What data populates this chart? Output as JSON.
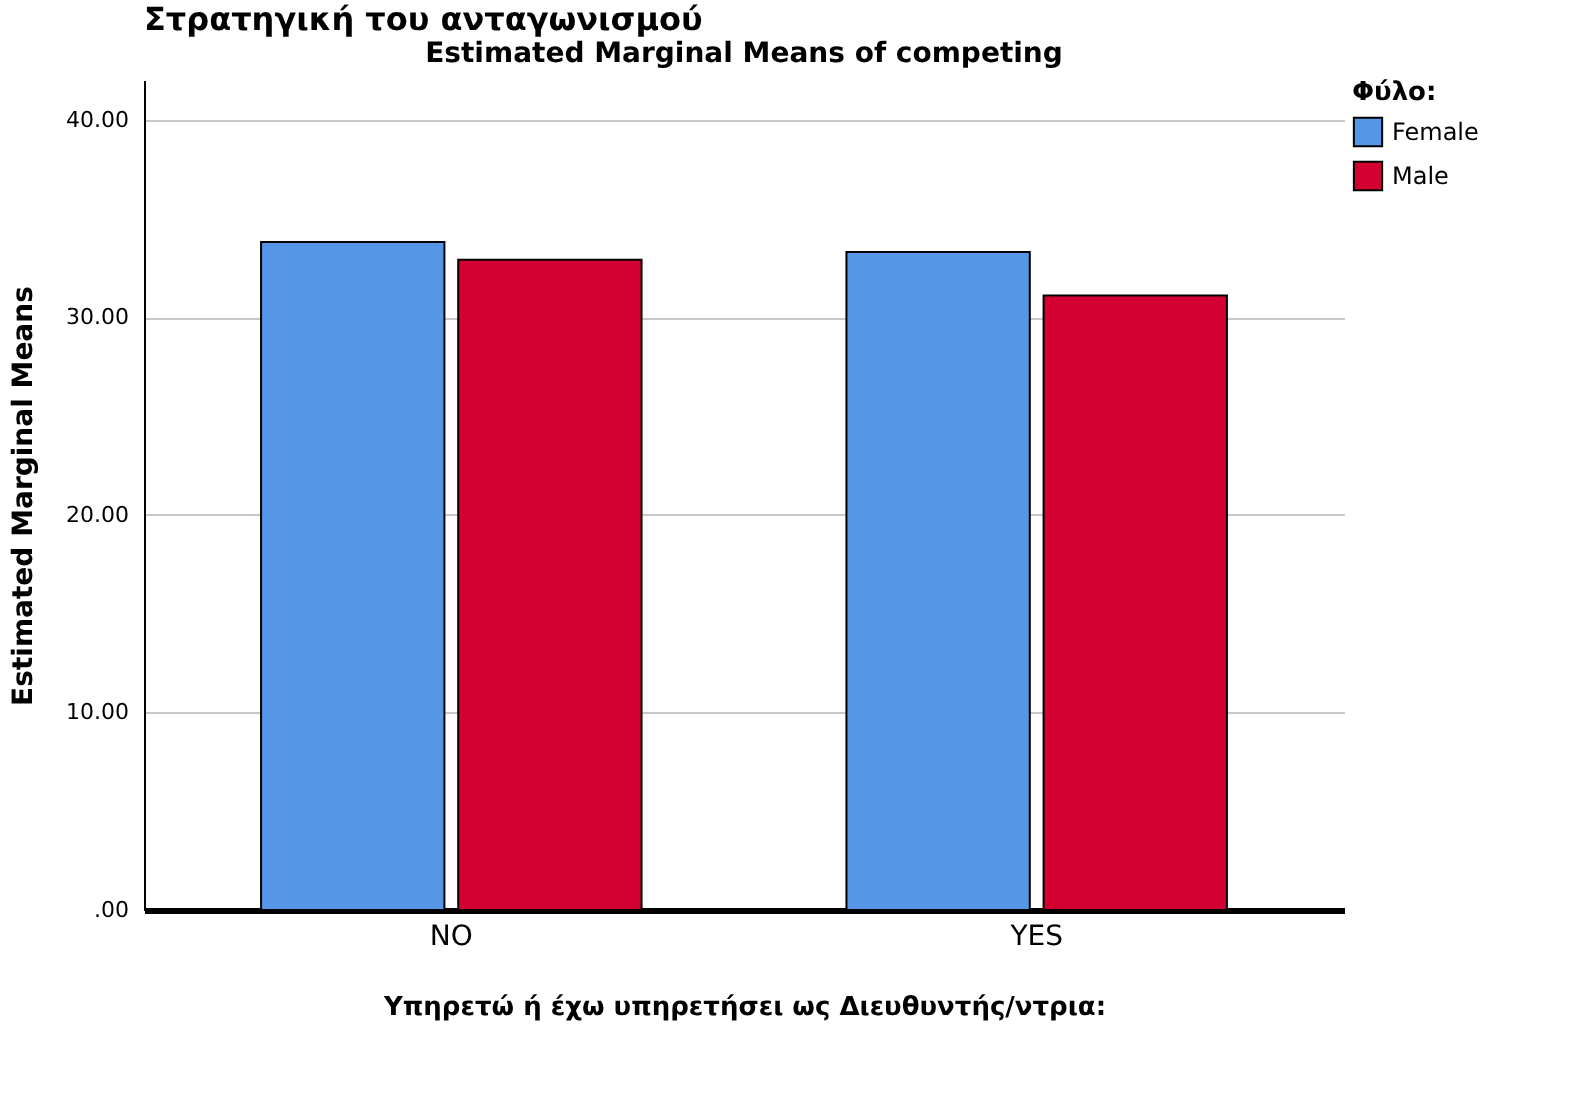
{
  "chart_data": {
    "type": "bar",
    "title": "Στρατηγική του ανταγωνισμού",
    "subtitle": "Estimated Marginal Means of competing",
    "xlabel": "Υπηρετώ ή έχω υπηρετήσει ως Διευθυντής/ντρια:",
    "ylabel": "Estimated Marginal Means",
    "legend_title": "Φύλο:",
    "categories": [
      "NO",
      "YES"
    ],
    "series": [
      {
        "name": "Female",
        "color": "#5596e6",
        "values": [
          33.8,
          33.3
        ]
      },
      {
        "name": "Male",
        "color": "#d50032",
        "values": [
          32.9,
          31.1
        ]
      }
    ],
    "ylim": [
      0,
      42
    ],
    "yticks": [
      {
        "value": 0,
        "label": ".00"
      },
      {
        "value": 10,
        "label": "10.00"
      },
      {
        "value": 20,
        "label": "20.00"
      },
      {
        "value": 30,
        "label": "30.00"
      },
      {
        "value": 40,
        "label": "40.00"
      }
    ],
    "grid": "y",
    "legend": "top right"
  }
}
